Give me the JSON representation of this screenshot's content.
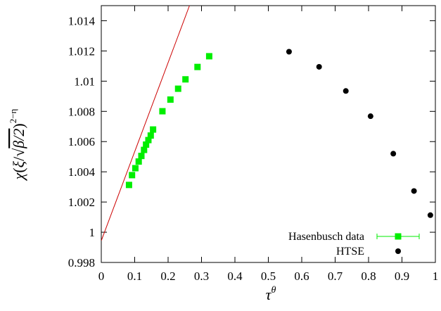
{
  "chart_data": {
    "type": "scatter",
    "title": "",
    "xlabel": "τ",
    "xlabel_sup": "θ",
    "ylabel_parts": {
      "chi": "χ",
      "open": "(",
      "xi": "ξ",
      "slash": "/",
      "root": "√",
      "radicand": "β/2",
      "close": ")",
      "exponent": "2−η"
    },
    "xlim": [
      0,
      1
    ],
    "ylim": [
      0.998,
      1.015
    ],
    "xticks": [
      0,
      0.1,
      0.2,
      0.3,
      0.4,
      0.5,
      0.6,
      0.7,
      0.8,
      0.9,
      1
    ],
    "xtick_labels": [
      "0",
      "0.1",
      "0.2",
      "0.3",
      "0.4",
      "0.5",
      "0.6",
      "0.7",
      "0.8",
      "0.9",
      "1"
    ],
    "yticks": [
      0.998,
      1,
      1.002,
      1.004,
      1.006,
      1.008,
      1.01,
      1.012,
      1.014
    ],
    "ytick_labels": [
      "0.998",
      "1",
      "1.002",
      "1.004",
      "1.006",
      "1.008",
      "1.01",
      "1.012",
      "1.014"
    ],
    "grid": false,
    "legend_position": "bottom-right",
    "series": [
      {
        "name": "Hasenbusch data",
        "marker": "square",
        "color": "#00ee00",
        "error_bars": true,
        "x": [
          0.083,
          0.092,
          0.102,
          0.112,
          0.12,
          0.128,
          0.134,
          0.141,
          0.148,
          0.155,
          0.183,
          0.207,
          0.23,
          0.252,
          0.288,
          0.323
        ],
        "y": [
          1.00313,
          1.00378,
          1.00424,
          1.00468,
          1.00505,
          1.00545,
          1.0058,
          1.0061,
          1.0064,
          1.0068,
          1.00801,
          1.00878,
          1.0095,
          1.01012,
          1.01094,
          1.01165
        ]
      },
      {
        "name": "HTSE",
        "marker": "circle",
        "color": "#000000",
        "x": [
          0.562,
          0.652,
          0.732,
          0.806,
          0.874,
          0.936,
          0.985
        ],
        "y": [
          1.01195,
          1.01095,
          1.00935,
          1.00768,
          1.0052,
          1.00273,
          1.00113
        ]
      }
    ],
    "fit_line": {
      "color": "#cc0000",
      "points": [
        [
          0,
          0.99944
        ],
        [
          0.264,
          1.015
        ]
      ]
    }
  }
}
